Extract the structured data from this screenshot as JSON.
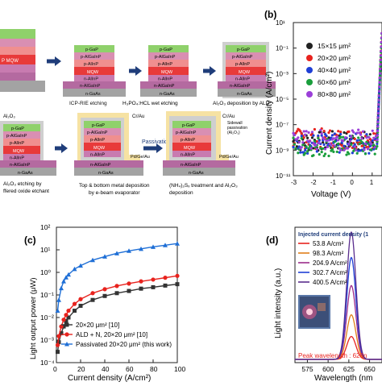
{
  "panel_a": {
    "steps": {
      "s1": "ICP-RIE etching",
      "s2": "H₃PO₄:HCL wet etching",
      "s3": "Al₂O₃ deposition by ALD",
      "s4a": "Al₂O₃ etching by",
      "s4b": "ffered oxide etchant",
      "s5a": "Top & bottom metal deposition",
      "s5b": "by e-beam evaporator",
      "s6a": "(NH₄)₂Sₓ treatment and Al₂O₃",
      "s6b": "deposition"
    },
    "passivation": "Passivation",
    "layers": {
      "pgap": "p-GaP",
      "palgainp": "p-AlGaInP",
      "palinp": "p-AlInP",
      "mqw": "MQW",
      "nalinp": "n-AlInP",
      "nalgainp": "n-AlGaInP",
      "ngaas": "n-GaAs",
      "mqw_partial": "P MQW",
      "al2o3": "Al₂O₃",
      "crau": "Cr/Au",
      "pdgeau": "Pd/Ge/Au",
      "sidewall1": "Sidewall",
      "sidewall2": "passivation",
      "sidewall3": "(Al₂O₃)"
    }
  },
  "panel_b": {
    "label": "(b)",
    "ylabel": "Current density (A/cm²)",
    "xlabel": "Voltage (V)",
    "xticks": [
      "-3",
      "-2",
      "-1",
      "0",
      "1"
    ],
    "yticks": [
      "10¹",
      "10⁻¹",
      "10⁻³",
      "10⁻⁵",
      "10⁻⁷",
      "10⁻⁹",
      "10⁻¹¹"
    ],
    "legend": [
      "15×15 μm²",
      "20×20 μm²",
      "40×40 μm²",
      "60×60 μm²",
      "80×80 μm²"
    ],
    "colors": [
      "#222222",
      "#e8231e",
      "#1f3fd6",
      "#1a9e3c",
      "#9b3fd8"
    ]
  },
  "panel_c": {
    "label": "(c)",
    "ylabel": "Light output power (μW)",
    "xlabel": "Current density (A/cm²)",
    "xticks": [
      "0",
      "20",
      "40",
      "60",
      "80",
      "100"
    ],
    "yticks": [
      "10²",
      "10¹",
      "10⁰",
      "10⁻¹",
      "10⁻²",
      "10⁻³",
      "10⁻⁴"
    ],
    "legend": [
      "20×20 μm² [10]",
      "ALD + N, 20×20 μm² [10]",
      "Passivated 20×20 μm² (this work)"
    ],
    "colors": [
      "#333333",
      "#e8231e",
      "#1f6fd6"
    ]
  },
  "panel_d": {
    "label": "(d)",
    "ylabel": "Light intensity (a.u.)",
    "xlabel": "Wavelength (nm",
    "xticks": [
      "575",
      "600",
      "625",
      "650"
    ],
    "legend_title": "Injected current density (1",
    "legend": [
      "53.8 A/cm²",
      "98.3 A/cm²",
      "204.9 A/cm²",
      "302.7 A/cm²",
      "400.5 A/cm²"
    ],
    "colors": [
      "#e8231e",
      "#e07f1a",
      "#9d2b8a",
      "#1f3fd6",
      "#5a2d8e"
    ],
    "peak": "Peak wavelength : 628n"
  },
  "chart_data": [
    {
      "type": "scatter",
      "xlabel": "Voltage (V)",
      "ylabel": "Current density (A/cm²)",
      "xlim": [
        -3,
        1.5
      ],
      "ylim_log10": [
        -11,
        1
      ],
      "yscale": "log",
      "series": [
        {
          "name": "15×15 μm²",
          "noise_floor_log10": -8.3,
          "turn_on_V": 1.3
        },
        {
          "name": "20×20 μm²",
          "noise_floor_log10": -8.1,
          "turn_on_V": 1.3
        },
        {
          "name": "40×40 μm²",
          "noise_floor_log10": -8.5,
          "turn_on_V": 1.3
        },
        {
          "name": "60×60 μm²",
          "noise_floor_log10": -8.7,
          "turn_on_V": 1.3
        },
        {
          "name": "80×80 μm²",
          "noise_floor_log10": -8.2,
          "turn_on_V": 1.3
        }
      ]
    },
    {
      "type": "line",
      "xlabel": "Current density (A/cm²)",
      "ylabel": "Light output power (μW)",
      "xlim": [
        0,
        100
      ],
      "ylim_log10": [
        -4,
        2
      ],
      "yscale": "log",
      "x": [
        1,
        2,
        4,
        6,
        8,
        10,
        15,
        20,
        30,
        40,
        50,
        60,
        70,
        80,
        90,
        100
      ],
      "series": [
        {
          "name": "20×20 μm² [10]",
          "values": [
            0.0003,
            0.0008,
            0.002,
            0.004,
            0.007,
            0.01,
            0.02,
            0.033,
            0.06,
            0.09,
            0.12,
            0.15,
            0.19,
            0.22,
            0.26,
            0.3
          ]
        },
        {
          "name": "ALD + N, 20×20 μm² [10]",
          "values": [
            0.0006,
            0.0015,
            0.004,
            0.008,
            0.013,
            0.02,
            0.04,
            0.065,
            0.12,
            0.18,
            0.25,
            0.32,
            0.4,
            0.48,
            0.58,
            0.7
          ]
        },
        {
          "name": "Passivated 20×20 μm² (this work)",
          "values": [
            0.02,
            0.06,
            0.2,
            0.4,
            0.6,
            0.8,
            1.4,
            2.0,
            3.5,
            5.0,
            7.0,
            9.0,
            11.0,
            13.5,
            16.0,
            19.0
          ]
        }
      ]
    },
    {
      "type": "line",
      "xlabel": "Wavelength (nm",
      "ylabel": "Light intensity (a.u.)",
      "xlim": [
        560,
        665
      ],
      "peak_nm": 628,
      "series": [
        {
          "name": "53.8 A/cm²",
          "relative_peak": 0.18
        },
        {
          "name": "98.3 A/cm²",
          "relative_peak": 0.35
        },
        {
          "name": "204.9 A/cm²",
          "relative_peak": 0.58
        },
        {
          "name": "302.7 A/cm²",
          "relative_peak": 0.8
        },
        {
          "name": "400.5 A/cm²",
          "relative_peak": 1.0
        }
      ]
    }
  ]
}
